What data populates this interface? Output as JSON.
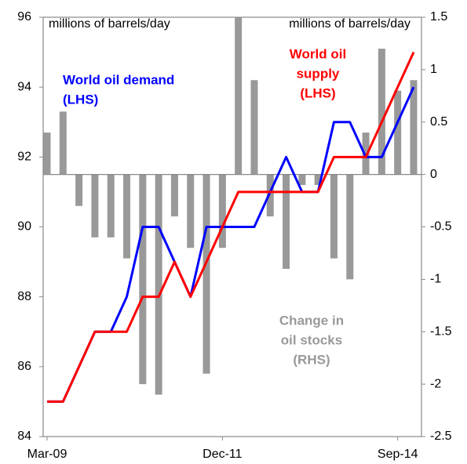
{
  "chart_data": {
    "type": "bar-line",
    "categories": [
      "Mar-09",
      null,
      null,
      null,
      null,
      null,
      null,
      null,
      null,
      null,
      null,
      "Dec-11",
      null,
      null,
      null,
      null,
      null,
      null,
      null,
      null,
      null,
      null,
      "Sep-14",
      null
    ],
    "ylim": [
      84,
      96
    ],
    "yticks": [
      84,
      86,
      88,
      90,
      92,
      94,
      96
    ],
    "y2lim": [
      -2.5,
      1.5
    ],
    "y2ticks": [
      -2.5,
      -2,
      -1.5,
      -1,
      -0.5,
      0,
      0.5,
      1,
      1.5
    ],
    "axis_labels": [
      "millions  of barrels/day",
      "millions  of barrels/day"
    ],
    "series": [
      {
        "label": [
          "World oil demand",
          "(LHS)"
        ],
        "type": "line",
        "color": "#0000ff",
        "values": [
          85,
          85,
          86,
          87,
          87,
          88,
          90,
          90,
          89,
          88,
          90,
          90,
          90,
          90,
          91,
          92,
          91,
          91,
          93,
          93,
          92,
          92,
          93,
          94
        ]
      },
      {
        "label": [
          "World oil",
          "supply",
          "(LHS)"
        ],
        "type": "line",
        "color": "#ff0000",
        "values": [
          85,
          85,
          86,
          87,
          87,
          87,
          88,
          88,
          89,
          88,
          89,
          90,
          91,
          91,
          91,
          91,
          91,
          91,
          92,
          92,
          92,
          93,
          94,
          95
        ]
      },
      {
        "label": [
          "Change in",
          "oil stocks",
          "(RHS)"
        ],
        "type": "bar",
        "axis": "y2",
        "color": "#999999",
        "values": [
          0.4,
          0.6,
          -0.3,
          -0.6,
          -0.6,
          -0.8,
          -2.0,
          -2.1,
          -0.4,
          -0.7,
          -1.9,
          -0.7,
          1.5,
          0.9,
          -0.4,
          -0.9,
          -0.1,
          -0.1,
          -0.8,
          -1.0,
          0.4,
          1.2,
          0.8,
          0.9
        ]
      }
    ]
  }
}
